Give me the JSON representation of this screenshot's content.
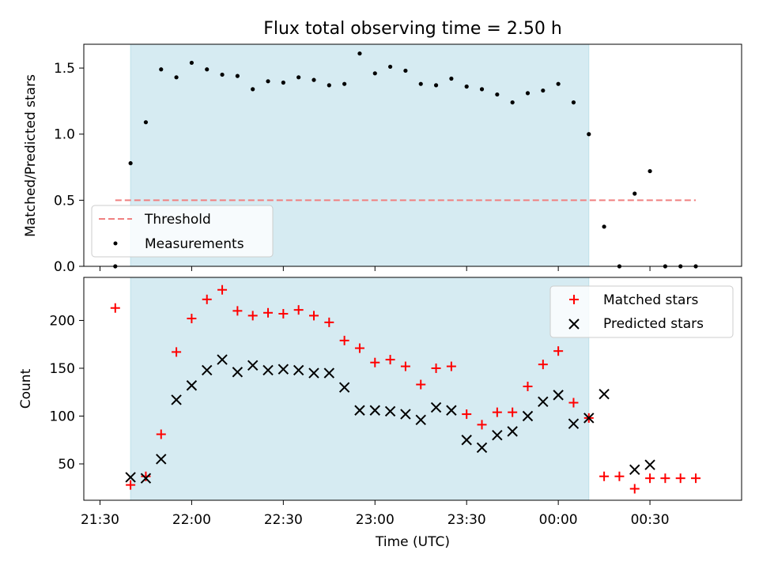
{
  "title": "Flux total observing time = 2.50 h",
  "chart_data": [
    {
      "type": "scatter",
      "ylabel": "Matched/Predicted stars",
      "ylim": [
        0,
        1.68
      ],
      "yticks": [
        "0.0",
        "0.5",
        "1.0",
        "1.5"
      ],
      "x_range": [
        "21:30",
        "00:55"
      ],
      "shaded_interval": [
        "21:40",
        "00:10"
      ],
      "grid": false,
      "legend_position": "lower-left",
      "threshold": {
        "name": "Threshold",
        "value": 0.5,
        "x": [
          "21:35",
          "00:45"
        ],
        "color": "#f08080"
      },
      "series": [
        {
          "name": "Measurements",
          "color": "#000000",
          "x": [
            "21:35",
            "21:40",
            "21:45",
            "21:50",
            "21:55",
            "22:00",
            "22:05",
            "22:10",
            "22:15",
            "22:20",
            "22:25",
            "22:30",
            "22:35",
            "22:40",
            "22:45",
            "22:50",
            "22:55",
            "23:00",
            "23:05",
            "23:10",
            "23:15",
            "23:20",
            "23:25",
            "23:30",
            "23:35",
            "23:40",
            "23:45",
            "23:50",
            "23:55",
            "00:00",
            "00:05",
            "00:10",
            "00:15",
            "00:20",
            "00:25",
            "00:30",
            "00:35",
            "00:40",
            "00:45"
          ],
          "y": [
            0.0,
            0.78,
            1.09,
            1.49,
            1.43,
            1.54,
            1.49,
            1.45,
            1.44,
            1.34,
            1.4,
            1.39,
            1.43,
            1.41,
            1.37,
            1.38,
            1.61,
            1.46,
            1.51,
            1.48,
            1.38,
            1.37,
            1.42,
            1.36,
            1.34,
            1.3,
            1.24,
            1.31,
            1.33,
            1.38,
            1.24,
            1.0,
            0.3,
            0.0,
            0.55,
            0.72,
            0.0,
            0.0,
            0.0
          ]
        }
      ]
    },
    {
      "type": "scatter",
      "xlabel": "Time (UTC)",
      "ylabel": "Count",
      "ylim": [
        12,
        245
      ],
      "yticks": [
        "50",
        "100",
        "150",
        "200"
      ],
      "xticks": [
        "21:30",
        "22:00",
        "22:30",
        "23:00",
        "23:30",
        "00:00",
        "00:30"
      ],
      "x_range": [
        "21:30",
        "00:55"
      ],
      "shaded_interval": [
        "21:40",
        "00:10"
      ],
      "grid": false,
      "legend_position": "top-right",
      "series": [
        {
          "name": "Matched stars",
          "marker": "+",
          "color": "#ff0000",
          "x": [
            "21:35",
            "21:40",
            "21:45",
            "21:50",
            "21:55",
            "22:00",
            "22:05",
            "22:10",
            "22:15",
            "22:20",
            "22:25",
            "22:30",
            "22:35",
            "22:40",
            "22:45",
            "22:50",
            "22:55",
            "23:00",
            "23:05",
            "23:10",
            "23:15",
            "23:20",
            "23:25",
            "23:30",
            "23:35",
            "23:40",
            "23:45",
            "23:50",
            "23:55",
            "00:00",
            "00:05",
            "00:10",
            "00:15",
            "00:20",
            "00:25",
            "00:30",
            "00:35",
            "00:40",
            "00:45"
          ],
          "y": [
            213,
            28,
            37,
            81,
            167,
            202,
            222,
            232,
            210,
            205,
            208,
            207,
            211,
            205,
            198,
            179,
            171,
            156,
            159,
            152,
            133,
            150,
            152,
            102,
            91,
            104,
            104,
            131,
            154,
            168,
            114,
            98,
            37,
            37,
            24,
            35,
            35,
            35,
            35
          ]
        },
        {
          "name": "Predicted stars",
          "marker": "x",
          "color": "#000000",
          "x": [
            "21:40",
            "21:45",
            "21:50",
            "21:55",
            "22:00",
            "22:05",
            "22:10",
            "22:15",
            "22:20",
            "22:25",
            "22:30",
            "22:35",
            "22:40",
            "22:45",
            "22:50",
            "22:55",
            "23:00",
            "23:05",
            "23:10",
            "23:15",
            "23:20",
            "23:25",
            "23:30",
            "23:35",
            "23:40",
            "23:45",
            "23:50",
            "23:55",
            "00:00",
            "00:05",
            "00:10",
            "00:15",
            "00:25",
            "00:30"
          ],
          "y": [
            36,
            35,
            55,
            117,
            132,
            148,
            159,
            146,
            153,
            148,
            149,
            148,
            145,
            145,
            130,
            106,
            106,
            105,
            102,
            96,
            109,
            106,
            75,
            67,
            80,
            84,
            100,
            115,
            122,
            92,
            98,
            123,
            44,
            49
          ]
        }
      ]
    }
  ]
}
